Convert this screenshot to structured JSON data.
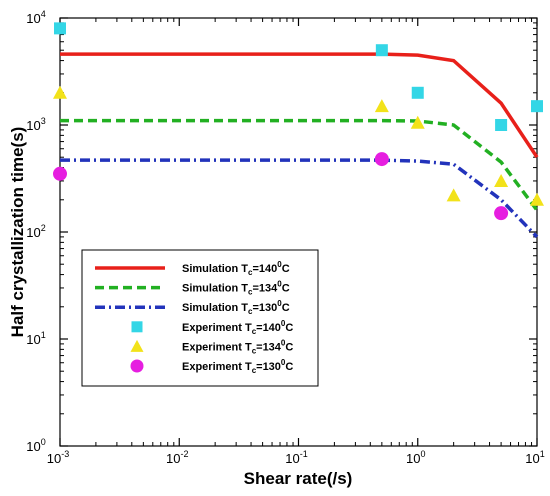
{
  "chart_data": {
    "type": "line",
    "xlabel": "Shear rate(/s)",
    "ylabel": "Half crystallization time(s)",
    "xscale": "log",
    "yscale": "log",
    "xlim": [
      0.001,
      10
    ],
    "ylim": [
      1,
      10000
    ],
    "x_ticks": [
      {
        "value": 0.001,
        "base": "10",
        "exp": "-3"
      },
      {
        "value": 0.01,
        "base": "10",
        "exp": "-2"
      },
      {
        "value": 0.1,
        "base": "10",
        "exp": "-1"
      },
      {
        "value": 1,
        "base": "10",
        "exp": "0"
      },
      {
        "value": 10,
        "base": "10",
        "exp": "1"
      }
    ],
    "y_ticks": [
      {
        "value": 1,
        "base": "10",
        "exp": "0"
      },
      {
        "value": 10,
        "base": "10",
        "exp": "1"
      },
      {
        "value": 100,
        "base": "10",
        "exp": "2"
      },
      {
        "value": 1000,
        "base": "10",
        "exp": "3"
      },
      {
        "value": 10000,
        "base": "10",
        "exp": "4"
      }
    ],
    "grid": false,
    "legend_position": "lower-left",
    "series": [
      {
        "name": "Simulation Tc=140°C",
        "label_main": "Simulation T",
        "label_sub": "c",
        "label_eq": "=140",
        "label_sup": "0",
        "label_end": "C",
        "kind": "line",
        "style": "solid",
        "color": "#e8201a",
        "x": [
          0.001,
          0.5,
          1,
          2,
          5,
          10
        ],
        "y": [
          4600,
          4600,
          4500,
          4000,
          1600,
          500
        ]
      },
      {
        "name": "Simulation Tc=134°C",
        "label_main": "Simulation T",
        "label_sub": "c",
        "label_eq": "=134",
        "label_sup": "0",
        "label_end": "C",
        "kind": "line",
        "style": "dashed",
        "color": "#22b022",
        "x": [
          0.001,
          0.5,
          1,
          2,
          5,
          10
        ],
        "y": [
          1100,
          1100,
          1090,
          1000,
          450,
          160
        ]
      },
      {
        "name": "Simulation Tc=130°C",
        "label_main": "Simulation T",
        "label_sub": "c",
        "label_eq": "=130",
        "label_sup": "0",
        "label_end": "C",
        "kind": "line",
        "style": "dashdot",
        "color": "#2233bb",
        "x": [
          0.001,
          0.5,
          1,
          2,
          5,
          10
        ],
        "y": [
          470,
          470,
          460,
          430,
          200,
          90
        ]
      },
      {
        "name": "Experiment Tc=140°C",
        "label_main": "Experiment T",
        "label_sub": "c",
        "label_eq": "=140",
        "label_sup": "0",
        "label_end": "C",
        "kind": "scatter",
        "marker": "square",
        "color": "#33d6e6",
        "x": [
          0.001,
          0.5,
          1,
          5,
          10
        ],
        "y": [
          8000,
          5000,
          2000,
          1000,
          1500
        ]
      },
      {
        "name": "Experiment Tc=134°C",
        "label_main": "Experiment T",
        "label_sub": "c",
        "label_eq": "=134",
        "label_sup": "0",
        "label_end": "C",
        "kind": "scatter",
        "marker": "triangle",
        "color": "#f2e21a",
        "x": [
          0.001,
          0.5,
          1,
          2,
          5,
          10
        ],
        "y": [
          2000,
          1500,
          1050,
          220,
          300,
          200
        ]
      },
      {
        "name": "Experiment Tc=130°C",
        "label_main": "Experiment T",
        "label_sub": "c",
        "label_eq": "=130",
        "label_sup": "0",
        "label_end": "C",
        "kind": "scatter",
        "marker": "circle",
        "color": "#e61ee0",
        "x": [
          0.001,
          0.5,
          5
        ],
        "y": [
          350,
          480,
          150
        ]
      }
    ]
  }
}
